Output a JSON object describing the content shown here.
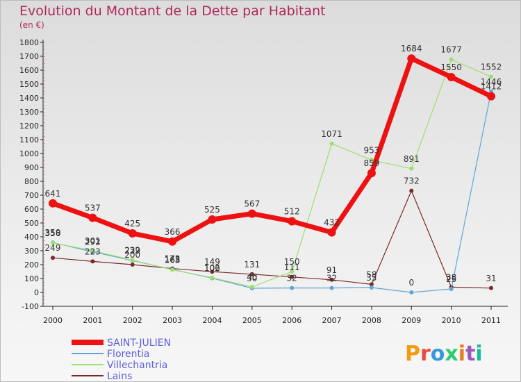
{
  "title": "Evolution du Montant de la Dette par Habitant",
  "subtitle": "(en €)",
  "logo_text": "Proxiti",
  "logo_colors": [
    "#f39c12",
    "#e74c3c",
    "#3498db",
    "#2ecc71",
    "#e67e22",
    "#9b59b6",
    "#1abc9c"
  ],
  "chart_data": {
    "type": "line",
    "title": "Evolution du Montant de la Dette par Habitant",
    "subtitle": "(en €)",
    "xlabel": "",
    "ylabel": "",
    "ylim": [
      -100,
      1800
    ],
    "ytick_step": 100,
    "grid": false,
    "legend_position": "bottom-left",
    "categories": [
      "2000",
      "2001",
      "2002",
      "2003",
      "2004",
      "2005",
      "2006",
      "2007",
      "2008",
      "2009",
      "2010",
      "2011"
    ],
    "series": [
      {
        "name": "Lains",
        "color": "#7a2a2a",
        "width": 1.2,
        "values": [
          249,
          223,
          200,
          172,
          149,
          131,
          111,
          91,
          58,
          732,
          38,
          31
        ]
      },
      {
        "name": "Florentia",
        "color": "#5fa4d6",
        "width": 1.2,
        "values": [
          359,
          292,
          229,
          165,
          102,
          30,
          32,
          32,
          35,
          0,
          25,
          1446
        ]
      },
      {
        "name": "Villechantria",
        "color": "#9cdf6e",
        "width": 1.2,
        "values": [
          356,
          301,
          232,
          163,
          106,
          40,
          150,
          1071,
          953,
          891,
          1677,
          1552
        ]
      },
      {
        "name": "SAINT-JULIEN",
        "color": "#ee1111",
        "width": 7,
        "values": [
          641,
          537,
          425,
          366,
          525,
          567,
          512,
          432,
          859,
          1684,
          1550,
          1412
        ]
      }
    ],
    "legend_order": [
      "SAINT-JULIEN",
      "Florentia",
      "Villechantria",
      "Lains"
    ]
  }
}
